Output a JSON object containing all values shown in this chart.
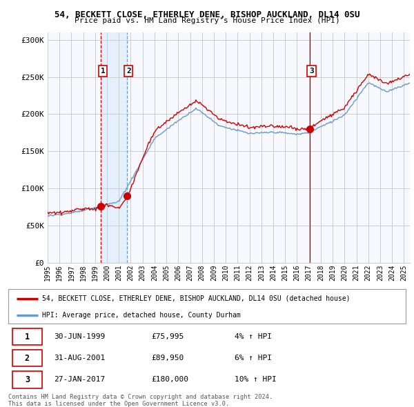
{
  "title1": "54, BECKETT CLOSE, ETHERLEY DENE, BISHOP AUCKLAND, DL14 0SU",
  "title2": "Price paid vs. HM Land Registry's House Price Index (HPI)",
  "ylabel_ticks": [
    "£0",
    "£50K",
    "£100K",
    "£150K",
    "£200K",
    "£250K",
    "£300K"
  ],
  "ytick_vals": [
    0,
    50000,
    100000,
    150000,
    200000,
    250000,
    300000
  ],
  "ylim": [
    0,
    310000
  ],
  "xlim_start": 1995.0,
  "xlim_end": 2025.5,
  "sale_dates": [
    1999.496,
    2001.664,
    2017.074
  ],
  "sale_prices": [
    75995,
    89950,
    180000
  ],
  "sale_labels": [
    "1",
    "2",
    "3"
  ],
  "legend_line1": "54, BECKETT CLOSE, ETHERLEY DENE, BISHOP AUCKLAND, DL14 0SU (detached house)",
  "legend_line2": "HPI: Average price, detached house, County Durham",
  "table_rows": [
    [
      "1",
      "30-JUN-1999",
      "£75,995",
      "4% ↑ HPI"
    ],
    [
      "2",
      "31-AUG-2001",
      "£89,950",
      "6% ↑ HPI"
    ],
    [
      "3",
      "27-JAN-2017",
      "£180,000",
      "10% ↑ HPI"
    ]
  ],
  "footnote1": "Contains HM Land Registry data © Crown copyright and database right 2024.",
  "footnote2": "This data is licensed under the Open Government Licence v3.0.",
  "line_color_red": "#cc0000",
  "line_color_blue": "#6699cc",
  "shade_color": "#ddeeff",
  "background_color": "#ffffff",
  "grid_color": "#cccccc",
  "plot_bg": "#f8f8ff"
}
